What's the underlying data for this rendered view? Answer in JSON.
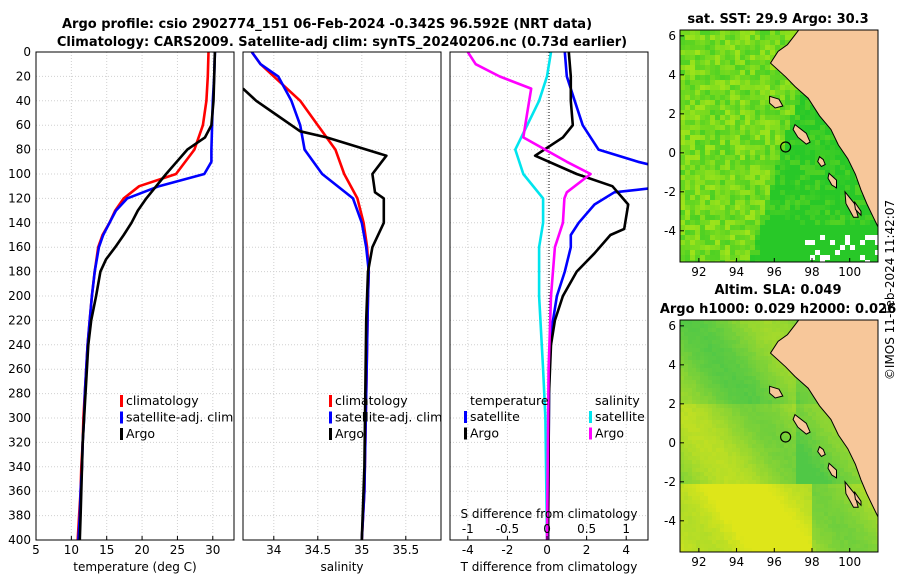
{
  "title": {
    "line1": "Argo profile: csio 2902774_151 06-Feb-2024 -0.342S 96.592E (NRT data)",
    "line2": "Climatology: CARS2009. Satellite-adj clim: synTS_20240206.nc (0.73d earlier)"
  },
  "colors": {
    "clim": "#ff0000",
    "sat": "#0000ff",
    "argo": "#000000",
    "sat_s": "#00e5ee",
    "argo_s": "#ff00ff",
    "land": "#f7c79a"
  },
  "depth_axis": {
    "ticks": [
      "0",
      "20",
      "40",
      "60",
      "80",
      "100",
      "120",
      "140",
      "160",
      "180",
      "200",
      "220",
      "240",
      "260",
      "280",
      "300",
      "320",
      "340",
      "360",
      "380",
      "400"
    ]
  },
  "chart_data": [
    {
      "type": "line",
      "id": "temperature",
      "xlabel": "temperature (deg C)",
      "ylabel": "depth",
      "xlim": [
        5,
        33
      ],
      "ylim": [
        0,
        400
      ],
      "y_reversed": true,
      "xticks": [
        "5",
        "10",
        "15",
        "20",
        "25",
        "30"
      ],
      "series": [
        {
          "name": "climatology",
          "color": "#ff0000",
          "points": [
            [
              29.4,
              0
            ],
            [
              29.3,
              20
            ],
            [
              29.1,
              40
            ],
            [
              28.6,
              60
            ],
            [
              27.4,
              80
            ],
            [
              24.8,
              100
            ],
            [
              19.6,
              110
            ],
            [
              17.4,
              120
            ],
            [
              16.2,
              130
            ],
            [
              15.4,
              140
            ],
            [
              14.4,
              150
            ],
            [
              13.8,
              160
            ],
            [
              13.3,
              180
            ],
            [
              12.9,
              200
            ],
            [
              12.6,
              220
            ],
            [
              12.3,
              240
            ],
            [
              12.1,
              260
            ],
            [
              11.9,
              280
            ],
            [
              11.7,
              300
            ],
            [
              11.6,
              320
            ],
            [
              11.4,
              340
            ],
            [
              11.3,
              360
            ],
            [
              11.1,
              380
            ],
            [
              10.9,
              400
            ]
          ]
        },
        {
          "name": "satellite-adj. clim",
          "color": "#0000ff",
          "points": [
            [
              30.3,
              0
            ],
            [
              30.2,
              20
            ],
            [
              30.0,
              40
            ],
            [
              29.9,
              60
            ],
            [
              29.8,
              80
            ],
            [
              29.8,
              90
            ],
            [
              28.8,
              100
            ],
            [
              22.4,
              110
            ],
            [
              17.9,
              120
            ],
            [
              16.3,
              130
            ],
            [
              15.4,
              140
            ],
            [
              14.5,
              150
            ],
            [
              13.9,
              160
            ],
            [
              13.3,
              180
            ],
            [
              12.9,
              200
            ],
            [
              12.6,
              220
            ],
            [
              12.3,
              240
            ],
            [
              12.1,
              260
            ],
            [
              11.9,
              280
            ],
            [
              11.8,
              300
            ],
            [
              11.6,
              320
            ],
            [
              11.5,
              340
            ],
            [
              11.3,
              360
            ],
            [
              11.2,
              380
            ],
            [
              11.0,
              400
            ]
          ]
        },
        {
          "name": "Argo",
          "color": "#000000",
          "points": [
            [
              30.3,
              0
            ],
            [
              30.2,
              20
            ],
            [
              30.1,
              40
            ],
            [
              29.8,
              60
            ],
            [
              28.9,
              70
            ],
            [
              26.4,
              80
            ],
            [
              24.9,
              90
            ],
            [
              23.4,
              100
            ],
            [
              22.0,
              110
            ],
            [
              20.6,
              120
            ],
            [
              19.4,
              130
            ],
            [
              18.5,
              140
            ],
            [
              17.4,
              150
            ],
            [
              16.2,
              160
            ],
            [
              14.9,
              170
            ],
            [
              14.1,
              180
            ],
            [
              13.5,
              200
            ],
            [
              12.8,
              220
            ],
            [
              12.4,
              240
            ],
            [
              12.2,
              260
            ],
            [
              12.0,
              280
            ],
            [
              11.8,
              300
            ],
            [
              11.6,
              320
            ],
            [
              11.5,
              340
            ],
            [
              11.4,
              360
            ],
            [
              11.3,
              380
            ],
            [
              11.2,
              400
            ]
          ]
        }
      ],
      "legend": [
        "climatology",
        "satellite-adj. clim",
        "Argo"
      ]
    },
    {
      "type": "line",
      "id": "salinity",
      "xlabel": "salinity",
      "xlim": [
        33.65,
        35.9
      ],
      "ylim": [
        0,
        400
      ],
      "y_reversed": true,
      "xticks": [
        "34",
        "34.5",
        "35",
        "35.5"
      ],
      "series": [
        {
          "name": "climatology",
          "color": "#ff0000",
          "points": [
            [
              33.75,
              0
            ],
            [
              33.85,
              10
            ],
            [
              34.0,
              20
            ],
            [
              34.3,
              40
            ],
            [
              34.5,
              60
            ],
            [
              34.7,
              80
            ],
            [
              34.8,
              100
            ],
            [
              34.95,
              120
            ],
            [
              35.02,
              140
            ],
            [
              35.06,
              160
            ],
            [
              35.08,
              180
            ],
            [
              35.07,
              200
            ],
            [
              35.06,
              240
            ],
            [
              35.05,
              280
            ],
            [
              35.04,
              320
            ],
            [
              35.03,
              360
            ],
            [
              35.0,
              400
            ]
          ]
        },
        {
          "name": "satellite-adj. clim",
          "color": "#0000ff",
          "points": [
            [
              33.75,
              0
            ],
            [
              33.85,
              10
            ],
            [
              34.05,
              20
            ],
            [
              34.2,
              40
            ],
            [
              34.3,
              60
            ],
            [
              34.35,
              80
            ],
            [
              34.55,
              100
            ],
            [
              34.9,
              120
            ],
            [
              35.0,
              140
            ],
            [
              35.05,
              160
            ],
            [
              35.08,
              180
            ],
            [
              35.07,
              200
            ],
            [
              35.06,
              240
            ],
            [
              35.05,
              280
            ],
            [
              35.04,
              320
            ],
            [
              35.03,
              360
            ],
            [
              35.0,
              400
            ]
          ]
        },
        {
          "name": "Argo",
          "color": "#000000",
          "points": [
            [
              33.65,
              30
            ],
            [
              33.8,
              40
            ],
            [
              34.0,
              50
            ],
            [
              34.2,
              60
            ],
            [
              34.3,
              65
            ],
            [
              34.6,
              70
            ],
            [
              35.28,
              85
            ],
            [
              35.12,
              100
            ],
            [
              35.15,
              115
            ],
            [
              35.25,
              120
            ],
            [
              35.25,
              140
            ],
            [
              35.12,
              160
            ],
            [
              35.07,
              180
            ],
            [
              35.05,
              220
            ],
            [
              35.04,
              280
            ],
            [
              35.03,
              340
            ],
            [
              35.0,
              400
            ]
          ]
        }
      ],
      "legend": [
        "climatology",
        "satellite-adj. clim",
        "Argo"
      ]
    },
    {
      "type": "line",
      "id": "differences",
      "xlabel": "T difference from climatology",
      "x2label": "S difference from climatology",
      "xlim": [
        -4.9,
        5.1
      ],
      "ylim": [
        0,
        400
      ],
      "y_reversed": true,
      "xticks": [
        "-4",
        "-2",
        "0",
        "2",
        "4"
      ],
      "x2ticks": [
        "-1",
        "-0.5",
        "0",
        "0.5",
        "1"
      ],
      "series": [
        {
          "name": "temperature satellite",
          "color": "#0000ff",
          "points": [
            [
              0.9,
              0
            ],
            [
              1.0,
              20
            ],
            [
              1.4,
              40
            ],
            [
              1.8,
              60
            ],
            [
              2.6,
              80
            ],
            [
              4.6,
              90
            ],
            [
              5.1,
              92
            ]
          ]
        },
        {
          "name": "temperature satellite (deep)",
          "color": "#0000ff",
          "points": [
            [
              5.1,
              112
            ],
            [
              3.4,
              115
            ],
            [
              2.4,
              125
            ],
            [
              1.6,
              140
            ],
            [
              1.2,
              150
            ],
            [
              1.2,
              160
            ],
            [
              0.9,
              180
            ],
            [
              0.5,
              200
            ],
            [
              0.3,
              220
            ],
            [
              0.15,
              240
            ],
            [
              0.1,
              280
            ],
            [
              0.05,
              400
            ]
          ]
        },
        {
          "name": "temperature Argo",
          "color": "#000000",
          "points": [
            [
              1.1,
              0
            ],
            [
              1.2,
              20
            ],
            [
              1.2,
              40
            ],
            [
              1.3,
              60
            ],
            [
              0.8,
              70
            ],
            [
              -0.6,
              85
            ],
            [
              1.5,
              100
            ],
            [
              3.3,
              110
            ],
            [
              4.1,
              125
            ],
            [
              3.9,
              145
            ],
            [
              3.2,
              150
            ],
            [
              2.4,
              165
            ],
            [
              1.5,
              180
            ],
            [
              0.8,
              200
            ],
            [
              0.4,
              220
            ],
            [
              0.2,
              240
            ],
            [
              0.1,
              280
            ],
            [
              0.05,
              400
            ]
          ]
        },
        {
          "name": "salinity satellite",
          "color": "#00e5ee",
          "points": [
            [
              0.05,
              0
            ],
            [
              0.0,
              20
            ],
            [
              -0.1,
              40
            ],
            [
              -0.25,
              60
            ],
            [
              -0.4,
              80
            ],
            [
              -0.3,
              100
            ],
            [
              -0.05,
              120
            ],
            [
              -0.05,
              140
            ],
            [
              -0.1,
              160
            ],
            [
              -0.1,
              200
            ],
            [
              -0.05,
              260
            ],
            [
              -0.02,
              300
            ],
            [
              0.0,
              400
            ]
          ]
        },
        {
          "name": "salinity Argo",
          "color": "#ff00ff",
          "points": [
            [
              -1.0,
              0
            ],
            [
              -0.9,
              10
            ],
            [
              -0.6,
              20
            ],
            [
              -0.2,
              30
            ],
            [
              -0.25,
              50
            ],
            [
              -0.3,
              70
            ],
            [
              0.25,
              90
            ],
            [
              0.55,
              100
            ],
            [
              0.25,
              115
            ],
            [
              0.22,
              120
            ],
            [
              0.2,
              140
            ],
            [
              0.1,
              160
            ],
            [
              0.05,
              200
            ],
            [
              0.02,
              260
            ],
            [
              0.0,
              400
            ]
          ]
        }
      ],
      "legend_t": {
        "heading": "temperature",
        "items": [
          "satellite",
          "Argo"
        ]
      },
      "legend_s": {
        "heading": "salinity",
        "items": [
          "satellite",
          "Argo"
        ]
      }
    },
    {
      "type": "heatmap",
      "id": "sst-map",
      "title": "sat. SST: 29.9 Argo: 30.3",
      "xlim": [
        91,
        101.5
      ],
      "ylim": [
        -5.6,
        6.3
      ],
      "xticks": [
        "92",
        "94",
        "96",
        "98",
        "100"
      ],
      "yticks": [
        "6",
        "4",
        "2",
        "0",
        "-2",
        "-4"
      ],
      "float_marker": [
        96.6,
        0.3
      ]
    },
    {
      "type": "heatmap",
      "id": "sla-map",
      "title1": "Altim. SLA: 0.049",
      "title2": "Argo h1000: 0.029 h2000: 0.026",
      "xlim": [
        91,
        101.5
      ],
      "ylim": [
        -5.6,
        6.3
      ],
      "xticks": [
        "92",
        "94",
        "96",
        "98",
        "100"
      ],
      "yticks": [
        "6",
        "4",
        "2",
        "0",
        "-2",
        "-4"
      ],
      "float_marker": [
        96.6,
        0.3
      ]
    }
  ],
  "credit": "©IMOS 11-Feb-2024 11:42:07"
}
